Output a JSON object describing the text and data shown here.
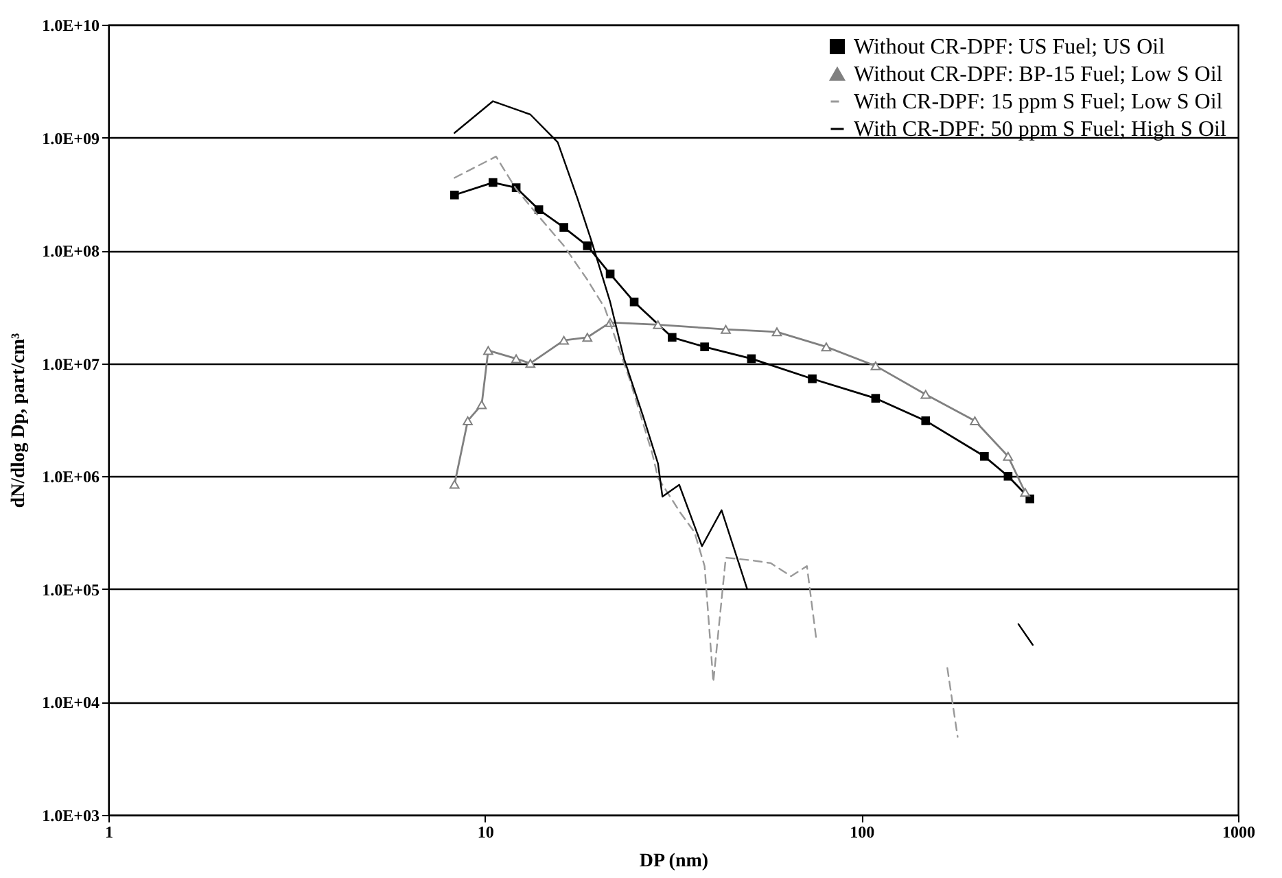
{
  "chart_data": {
    "type": "line",
    "log": "xy",
    "xlabel": "DP (nm)",
    "ylabel": "dN/dlog Dp, part/cm³",
    "xlim": [
      1,
      1000
    ],
    "ylim": [
      1000,
      10000000000
    ],
    "xticks": [
      1,
      10,
      100,
      1000
    ],
    "yticks": [
      {
        "value": 1000,
        "label": "1.0E+03"
      },
      {
        "value": 10000,
        "label": "1.0E+04"
      },
      {
        "value": 100000,
        "label": "1.0E+05"
      },
      {
        "value": 1000000,
        "label": "1.0E+06"
      },
      {
        "value": 10000000,
        "label": "1.0E+07"
      },
      {
        "value": 100000000,
        "label": "1.0E+08"
      },
      {
        "value": 1000000000,
        "label": "1.0E+09"
      },
      {
        "value": 10000000000,
        "label": "1.0E+10"
      }
    ],
    "grid": "y",
    "legend": "top right",
    "series": [
      {
        "name": "Without CR-DPF: US Fuel; US Oil",
        "color": "#000000",
        "marker": "square",
        "line_style": "solid",
        "x": [
          8.3,
          10.5,
          12.1,
          13.9,
          16.2,
          18.7,
          21.5,
          24.9,
          31.4,
          38.3,
          51,
          74,
          109,
          148,
          212,
          245,
          280
        ],
        "values": [
          310000000.0,
          400000000.0,
          360000000.0,
          230000000.0,
          160000000.0,
          110000000.0,
          62000000.0,
          35000000.0,
          17000000.0,
          14000000.0,
          11000000.0,
          7300000.0,
          4900000.0,
          3100000.0,
          1500000.0,
          1000000.0,
          630000.0
        ]
      },
      {
        "name": "Without CR-DPF: BP-15 Fuel; Low S Oil",
        "color": "#808080",
        "marker": "triangle",
        "line_style": "solid",
        "x": [
          8.3,
          9.0,
          9.8,
          10.2,
          12.1,
          13.2,
          16.2,
          18.7,
          21.5,
          28.8,
          43.6,
          59.6,
          80.6,
          109,
          148,
          200,
          245,
          272
        ],
        "values": [
          850000.0,
          3100000.0,
          4300000.0,
          13000000.0,
          11000000.0,
          10000000.0,
          16000000.0,
          17000000.0,
          23000000.0,
          22000000.0,
          20000000.0,
          19000000.0,
          14000000.0,
          9500000.0,
          5300000.0,
          3100000.0,
          1500000.0,
          720000.0
        ]
      },
      {
        "name": "With CR-DPF: 15 ppm S Fuel; Low S Oil",
        "color": "#999999",
        "marker": "none",
        "line_style": "dashed",
        "x": [
          8.3,
          10.7,
          12.1,
          13.9,
          16.2,
          18.7,
          20.8,
          24.2,
          27.8,
          28.8,
          33.1,
          36,
          38.3,
          40.4,
          43.6,
          51,
          57.4,
          65,
          71.6,
          76,
          120,
          169,
          180
        ],
        "values": [
          440000000.0,
          680000000.0,
          350000000.0,
          200000000.0,
          110000000.0,
          55000000.0,
          31000000.0,
          7300000.0,
          1600000.0,
          970000.0,
          470000.0,
          320000.0,
          160000.0,
          15000.0,
          190000.0,
          180000.0,
          170000.0,
          130000.0,
          160000.0,
          34000.0,
          null,
          20000.0,
          4900.0
        ]
      },
      {
        "name": "With CR-DPF: 50 ppm S Fuel; High S Oil",
        "color": "#000000",
        "marker": "none",
        "line_style": "solid",
        "x": [
          8.3,
          10.5,
          13.2,
          15.6,
          17.6,
          19.2,
          21.5,
          23.4,
          26.3,
          28.8,
          29.6,
          32.8,
          37.7,
          42.5,
          49.7,
          150,
          261,
          285
        ],
        "values": [
          1100000000.0,
          2100000000.0,
          1600000000.0,
          910000000.0,
          290000000.0,
          120000000.0,
          35000000.0,
          11000000.0,
          3400000.0,
          1300000.0,
          660000.0,
          840000.0,
          240000.0,
          500000.0,
          100000.0,
          null,
          49000.0,
          32000.0
        ]
      }
    ]
  }
}
